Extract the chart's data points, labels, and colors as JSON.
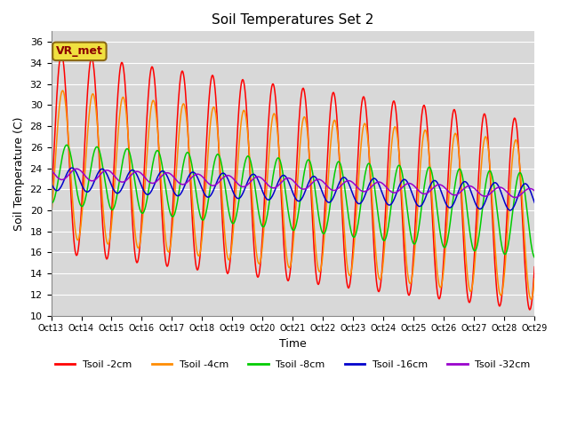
{
  "title": "Soil Temperatures Set 2",
  "xlabel": "Time",
  "ylabel": "Soil Temperature (C)",
  "ylim": [
    10,
    37
  ],
  "yticks": [
    10,
    12,
    14,
    16,
    18,
    20,
    22,
    24,
    26,
    28,
    30,
    32,
    34,
    36
  ],
  "annotation_text": "VR_met",
  "annotation_bg": "#f0e040",
  "annotation_border": "#8b6914",
  "colors": {
    "Tsoil -2cm": "#ff0000",
    "Tsoil -4cm": "#ff8c00",
    "Tsoil -8cm": "#00cc00",
    "Tsoil -16cm": "#0000cc",
    "Tsoil -32cm": "#9900cc"
  },
  "legend_labels": [
    "Tsoil -2cm",
    "Tsoil -4cm",
    "Tsoil -8cm",
    "Tsoil -16cm",
    "Tsoil -32cm"
  ],
  "x_tick_labels": [
    "Oct 13",
    "Oct 14",
    "Oct 15",
    "Oct 16",
    "Oct 17",
    "Oct 18",
    "Oct 19",
    "Oct 20",
    "Oct 21",
    "Oct 22",
    "Oct 23",
    "Oct 24",
    "Oct 25",
    "Oct 26",
    "Oct 27",
    "Oct 28",
    "Oct 29"
  ],
  "n_days": 16,
  "n_points": 768
}
